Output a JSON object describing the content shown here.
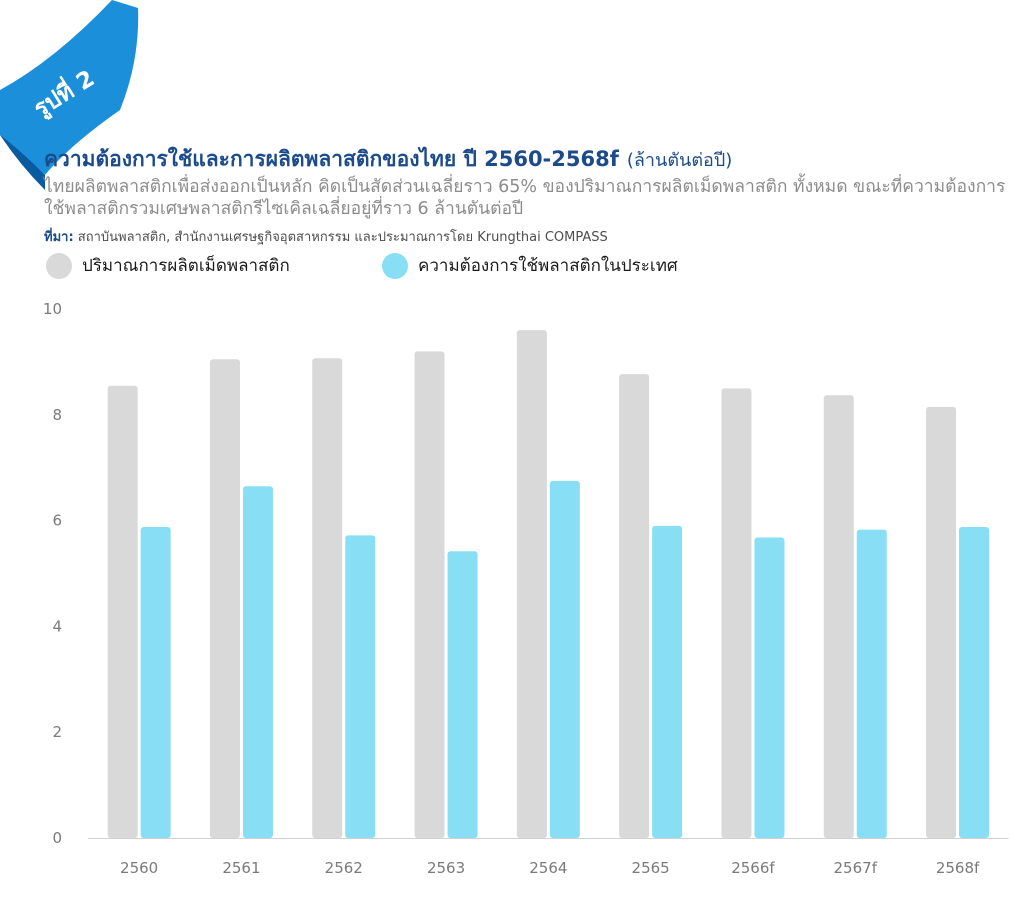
{
  "badge": {
    "text": "รูปที่ 2"
  },
  "title": {
    "main": "ความต้องการใช้และการผลิตพลาสติกของไทย ปี 2560-2568f",
    "unit": "(ล้านตันต่อปี)"
  },
  "subtitle": "ไทยผลิตพลาสติกเพื่อส่งออกเป็นหลัก คิดเป็นสัดส่วนเฉลี่ยราว 65% ของปริมาณการผลิตเม็ดพลาสติก ทั้งหมด ขณะที่ความต้องการใช้พลาสติกรวมเศษพลาสติกรีไซเคิลเฉลี่ยอยู่ที่ราว 6 ล้านตันต่อปี",
  "source": {
    "label": "ที่มา:",
    "text": "สถาบันพลาสติก, สำนักงานเศรษฐกิจอุตสาหกรรม และประมาณการโดย Krungthai COMPASS"
  },
  "colors": {
    "production": "#d9d9d9",
    "demand": "#88dff5",
    "title": "#1c4b8c",
    "ribbon": "#1b8fd9"
  },
  "chart_data": {
    "type": "bar",
    "categories": [
      "2560",
      "2561",
      "2562",
      "2563",
      "2564",
      "2565",
      "2566f",
      "2567f",
      "2568f"
    ],
    "series": [
      {
        "name": "ปริมาณการผลิตเม็ดพลาสติก",
        "values": [
          8.55,
          9.05,
          9.07,
          9.2,
          9.6,
          8.77,
          8.5,
          8.37,
          8.15
        ]
      },
      {
        "name": "ความต้องการใช้พลาสติกในประเทศ",
        "values": [
          5.88,
          6.65,
          5.72,
          5.42,
          6.75,
          5.9,
          5.68,
          5.83,
          5.88
        ]
      }
    ],
    "yticks": [
      0,
      2,
      4,
      6,
      8,
      10
    ],
    "ylim": [
      0,
      10
    ],
    "legend": "top-left",
    "grid": false
  }
}
